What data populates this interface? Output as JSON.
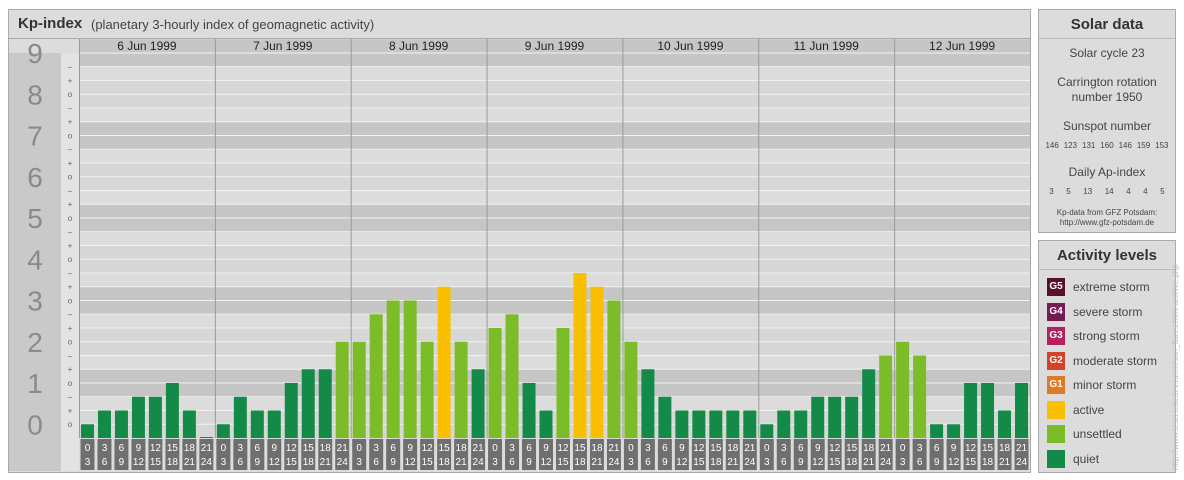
{
  "title": {
    "main": "Kp-index",
    "subtitle": "(planetary 3-hourly index of geomagnetic activity)"
  },
  "solar": {
    "heading": "Solar data",
    "cycle": "Solar cycle 23",
    "carrington_line1": "Carrington rotation",
    "carrington_line2": "number 1950",
    "sunspot_label": "Sunspot number",
    "sunspot_values": [
      "146",
      "123",
      "131",
      "160",
      "146",
      "159",
      "153"
    ],
    "ap_label": "Daily Ap-index",
    "ap_values": [
      "3",
      "5",
      "13",
      "14",
      "4",
      "4",
      "5"
    ],
    "credit_line1": "Kp-data from GFZ Potsdam:",
    "credit_line2": "http://www.gfz-potsdam.de"
  },
  "activity": {
    "heading": "Activity levels",
    "levels": [
      {
        "badge": "G5",
        "label": "extreme storm",
        "color": "#5b0f2e"
      },
      {
        "badge": "G4",
        "label": "severe storm",
        "color": "#761a56"
      },
      {
        "badge": "G3",
        "label": "strong storm",
        "color": "#b6205c"
      },
      {
        "badge": "G2",
        "label": "moderate storm",
        "color": "#d4422a"
      },
      {
        "badge": "G1",
        "label": "minor storm",
        "color": "#e07a22"
      },
      {
        "badge": "",
        "label": "active",
        "color": "#f8c000"
      },
      {
        "badge": "",
        "label": "unsettled",
        "color": "#7cbc28"
      },
      {
        "badge": "",
        "label": "quiet",
        "color": "#138a47"
      }
    ]
  },
  "watermark": "http://www.tesis.lebedev.ru/en/sun_flares.html  archive.php",
  "chart_data": {
    "type": "bar",
    "y_axis_labels": [
      "0",
      "1",
      "2",
      "3",
      "4",
      "5",
      "6",
      "7",
      "8",
      "9"
    ],
    "y_sub_labels": [
      "–",
      "o",
      "+"
    ],
    "ylim": [
      0,
      9.3333
    ],
    "days": [
      "6 Jun 1999",
      "7 Jun 1999",
      "8 Jun 1999",
      "9 Jun 1999",
      "10 Jun 1999",
      "11 Jun 1999",
      "12 Jun 1999"
    ],
    "hour_starts": [
      "0",
      "3",
      "6",
      "9",
      "12",
      "15",
      "18",
      "21"
    ],
    "hour_ends": [
      "3",
      "6",
      "9",
      "12",
      "15",
      "18",
      "21",
      "24"
    ],
    "thresholds": {
      "unsettled": 2,
      "active": 3.6667
    },
    "colors": {
      "quiet": "#138a47",
      "unsettled": "#7cbc28",
      "active": "#f8c000"
    },
    "series": [
      {
        "values": [
          0.3333,
          0.6667,
          0.6667,
          1,
          1,
          1.3333,
          0.6667,
          0,
          0.3333,
          1,
          0.6667,
          0.6667,
          1.3333,
          1.6667,
          1.6667,
          2.3333,
          2.3333,
          3,
          3.3333,
          3.3333,
          2.3333,
          3.6667,
          2.3333,
          1.6667,
          2.6667,
          3,
          1.3333,
          0.6667,
          2.6667,
          4,
          3.6667,
          3.3333,
          2.3333,
          1.6667,
          1,
          0.6667,
          0.6667,
          0.6667,
          0.6667,
          0.6667,
          0.3333,
          0.6667,
          0.6667,
          1,
          1,
          1,
          1.6667,
          2,
          2.3333,
          2,
          0.3333,
          0.3333,
          1.3333,
          1.3333,
          0.6667,
          1.3333
        ]
      }
    ]
  }
}
